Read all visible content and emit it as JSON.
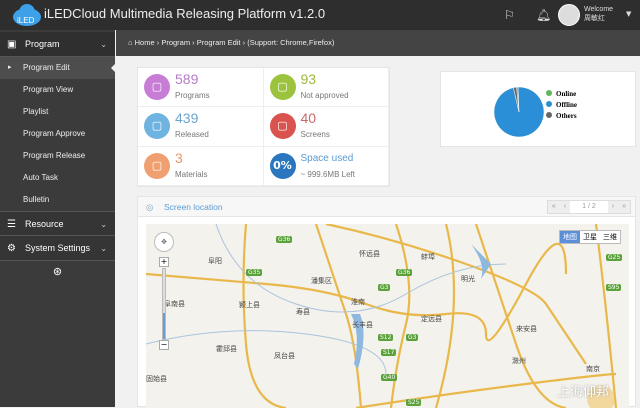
{
  "header": {
    "logo_text": "iLED",
    "title": "iLEDCloud Multimedia Releasing Platform v1.2.0",
    "welcome": "Welcome",
    "username": "周敏红",
    "icons": [
      "flag-icon",
      "bell-icon",
      "avatar",
      "caret-down-icon"
    ]
  },
  "sidebar": {
    "sections": [
      {
        "label": "Program",
        "icon": "monitor-icon"
      },
      {
        "label": "Resource",
        "icon": "server-icon"
      },
      {
        "label": "System Settings",
        "icon": "gear-icon"
      }
    ],
    "items": [
      "Program Edit",
      "Program View",
      "Playlist",
      "Program Approve",
      "Program Release",
      "Auto Task",
      "Bulletin"
    ],
    "active": "Program Edit"
  },
  "breadcrumb": {
    "home": "Home",
    "sep": " › ",
    "items": [
      "Program",
      "Program Edit",
      "(Support: Chrome,Firefox)"
    ]
  },
  "stats": [
    {
      "value": "589",
      "label": "Programs",
      "color": "#c77dd6",
      "num_color": "#b57cc9",
      "icon": "tv-icon"
    },
    {
      "value": "93",
      "label": "Not approved",
      "color": "#9cc33d",
      "num_color": "#9cb83b",
      "icon": "stamp-icon"
    },
    {
      "value": "439",
      "label": "Released",
      "color": "#6fb3e0",
      "num_color": "#6ba6cf",
      "icon": "monitor-check-icon"
    },
    {
      "value": "40",
      "label": "Screens",
      "color": "#d9534f",
      "num_color": "#c96a66",
      "icon": "screen-icon"
    },
    {
      "value": "3",
      "label": "Materials",
      "color": "#f0a070",
      "num_color": "#e59a6a",
      "icon": "laptop-icon"
    },
    {
      "value": "Space used",
      "label": "~ 999.6MB Left",
      "badge": "0%",
      "color": "#2a77c0",
      "num_color": "#5a9bd5",
      "icon": "percent-icon"
    }
  ],
  "chart_data": {
    "type": "pie",
    "categories": [
      "Online",
      "Offline",
      "Others"
    ],
    "values": [
      1,
      97,
      2
    ],
    "colors": [
      "#5cb85c",
      "#2a8fd6",
      "#666666"
    ],
    "legend": "right"
  },
  "location": {
    "title": "Screen location",
    "pager": {
      "first": "«",
      "prev": "‹",
      "page": "1 / 2",
      "next": "›",
      "last": "»"
    },
    "map_types": [
      "地图",
      "卫星",
      "三维"
    ],
    "labels": [
      "阜阳",
      "蚌埠",
      "淮南",
      "滁州",
      "南京",
      "颍上县",
      "阜南县",
      "凤台县",
      "寿县",
      "长丰县",
      "定远县",
      "怀远县",
      "霍邱县",
      "来安县",
      "固始县",
      "潘集区",
      "明光"
    ],
    "highways": [
      "G36",
      "G35",
      "G3",
      "S12",
      "S17",
      "G40",
      "S25",
      "G25",
      "S95",
      "G36",
      "G3"
    ],
    "watermark": "上海仰邦"
  }
}
